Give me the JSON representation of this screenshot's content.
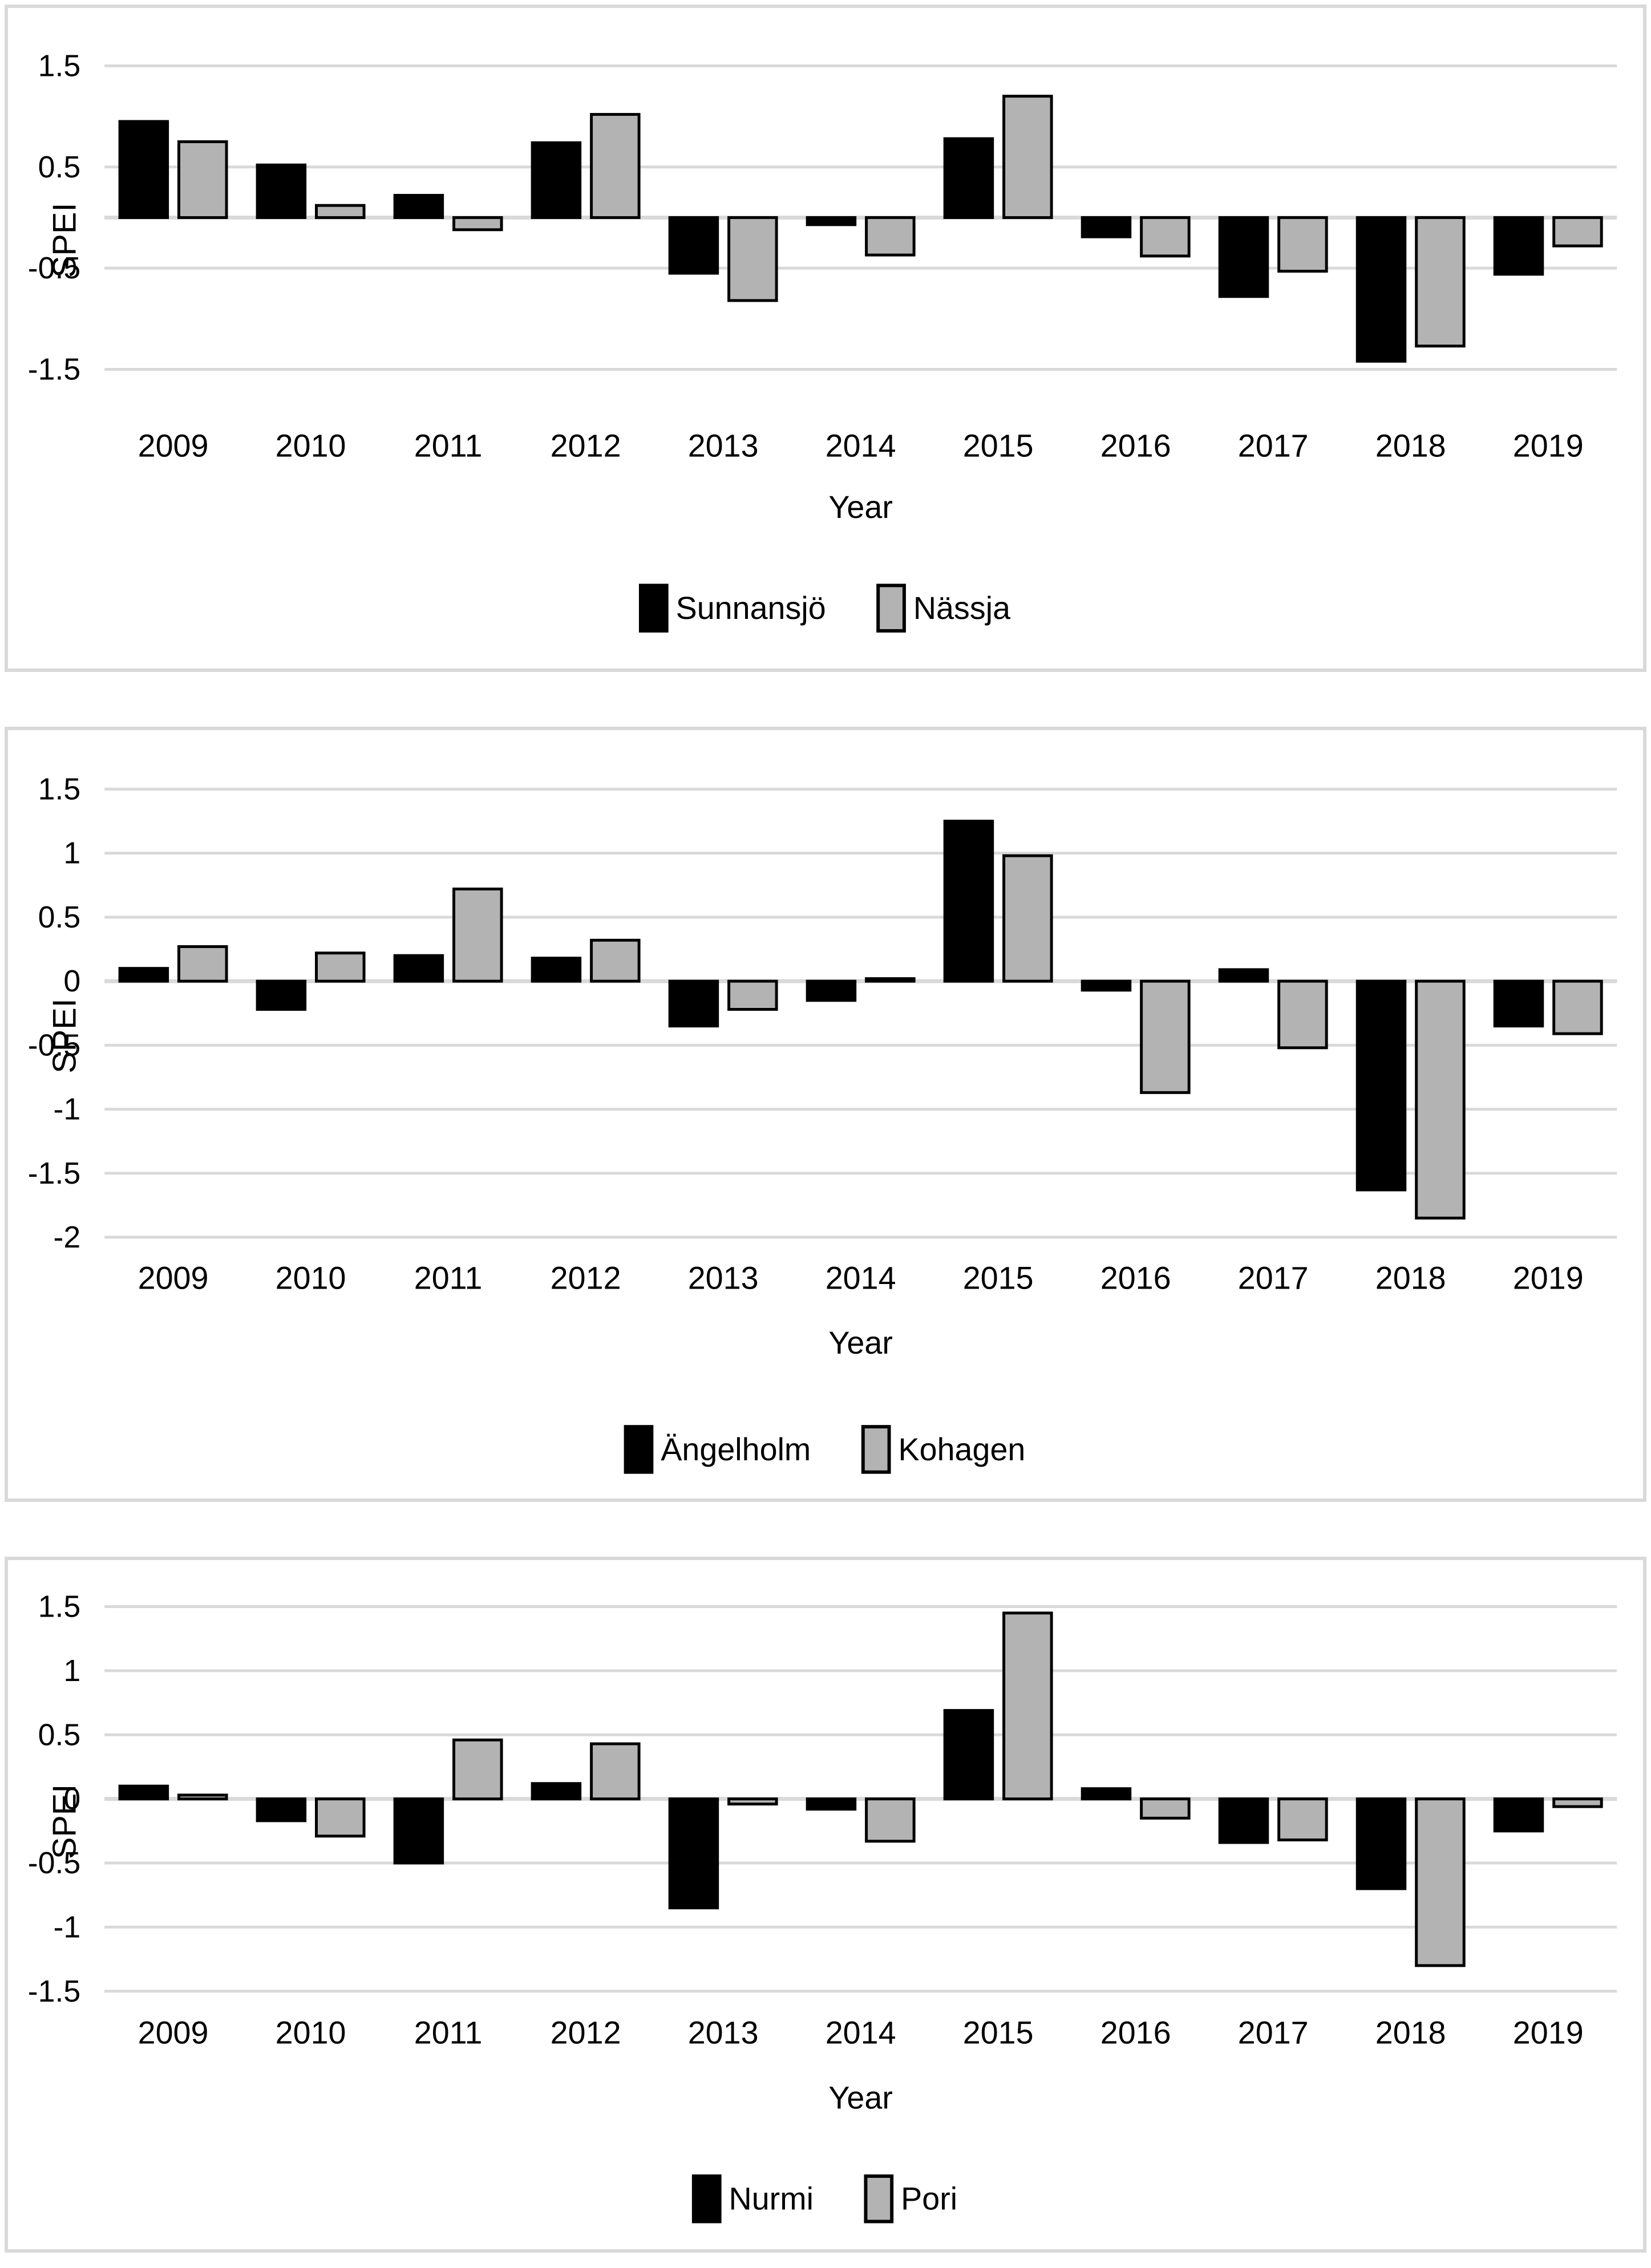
{
  "page_background": "#ffffff",
  "panel_border_color": "#d9d9d9",
  "gridline_color": "#d9d9d9",
  "chart_data": [
    {
      "type": "bar",
      "title": "",
      "xlabel": "Year",
      "ylabel": "SPEI",
      "categories": [
        "2009",
        "2010",
        "2011",
        "2012",
        "2013",
        "2014",
        "2015",
        "2016",
        "2017",
        "2018",
        "2019"
      ],
      "series": [
        {
          "name": "Sunnansjö",
          "color": "#000000",
          "values": [
            0.95,
            0.52,
            0.22,
            0.74,
            -0.55,
            -0.07,
            0.78,
            -0.19,
            -0.78,
            -1.42,
            -0.56
          ]
        },
        {
          "name": "Nässja",
          "color": "#b3b3b3",
          "values": [
            0.75,
            0.12,
            -0.12,
            1.02,
            -0.82,
            -0.37,
            1.2,
            -0.38,
            -0.53,
            -1.27,
            -0.28
          ]
        }
      ],
      "ylim": [
        1.5,
        -1.5
      ],
      "yticks": [
        {
          "label": "1.5",
          "value": 1.5
        },
        {
          "label": "0.5",
          "value": 0.5
        },
        {
          "label": "-0.5",
          "value": -0.5
        },
        {
          "label": "-1.5",
          "value": -1.5
        }
      ],
      "grid": true,
      "legend_position": "bottom"
    },
    {
      "type": "bar",
      "title": "",
      "xlabel": "Year",
      "ylabel": "SPEI",
      "categories": [
        "2009",
        "2010",
        "2011",
        "2012",
        "2013",
        "2014",
        "2015",
        "2016",
        "2017",
        "2018",
        "2019"
      ],
      "series": [
        {
          "name": "Ängelholm",
          "color": "#000000",
          "values": [
            0.1,
            -0.22,
            0.2,
            0.18,
            -0.35,
            -0.15,
            1.25,
            -0.07,
            0.09,
            -1.63,
            -0.35
          ]
        },
        {
          "name": "Kohagen",
          "color": "#b3b3b3",
          "values": [
            0.27,
            0.22,
            0.72,
            0.32,
            -0.22,
            0.02,
            0.98,
            -0.87,
            -0.52,
            -1.85,
            -0.41
          ]
        }
      ],
      "ylim": [
        1.5,
        -2
      ],
      "yticks": [
        {
          "label": "1.5",
          "value": 1.5
        },
        {
          "label": "1",
          "value": 1
        },
        {
          "label": "0.5",
          "value": 0.5
        },
        {
          "label": "0",
          "value": 0
        },
        {
          "label": "-0.5",
          "value": -0.5
        },
        {
          "label": "-1",
          "value": -1
        },
        {
          "label": "-1.5",
          "value": -1.5
        },
        {
          "label": "-2",
          "value": -2
        }
      ],
      "grid": true,
      "legend_position": "bottom"
    },
    {
      "type": "bar",
      "title": "",
      "xlabel": "Year",
      "ylabel": "SPEI",
      "categories": [
        "2009",
        "2010",
        "2011",
        "2012",
        "2013",
        "2014",
        "2015",
        "2016",
        "2017",
        "2018",
        "2019"
      ],
      "series": [
        {
          "name": "Nurmi",
          "color": "#000000",
          "values": [
            0.1,
            -0.17,
            -0.5,
            0.12,
            -0.85,
            -0.08,
            0.69,
            0.08,
            -0.34,
            -0.7,
            -0.25
          ]
        },
        {
          "name": "Pori",
          "color": "#b3b3b3",
          "values": [
            0.03,
            -0.29,
            0.46,
            0.43,
            -0.04,
            -0.33,
            1.45,
            -0.15,
            -0.32,
            -1.3,
            -0.06
          ]
        }
      ],
      "ylim": [
        1.5,
        -1.5
      ],
      "yticks": [
        {
          "label": "1.5",
          "value": 1.5
        },
        {
          "label": "1",
          "value": 1
        },
        {
          "label": "0.5",
          "value": 0.5
        },
        {
          "label": "0",
          "value": 0
        },
        {
          "label": "-0.5",
          "value": -0.5
        },
        {
          "label": "-1",
          "value": -1
        },
        {
          "label": "-1.5",
          "value": -1.5
        }
      ],
      "grid": true,
      "legend_position": "bottom"
    }
  ]
}
